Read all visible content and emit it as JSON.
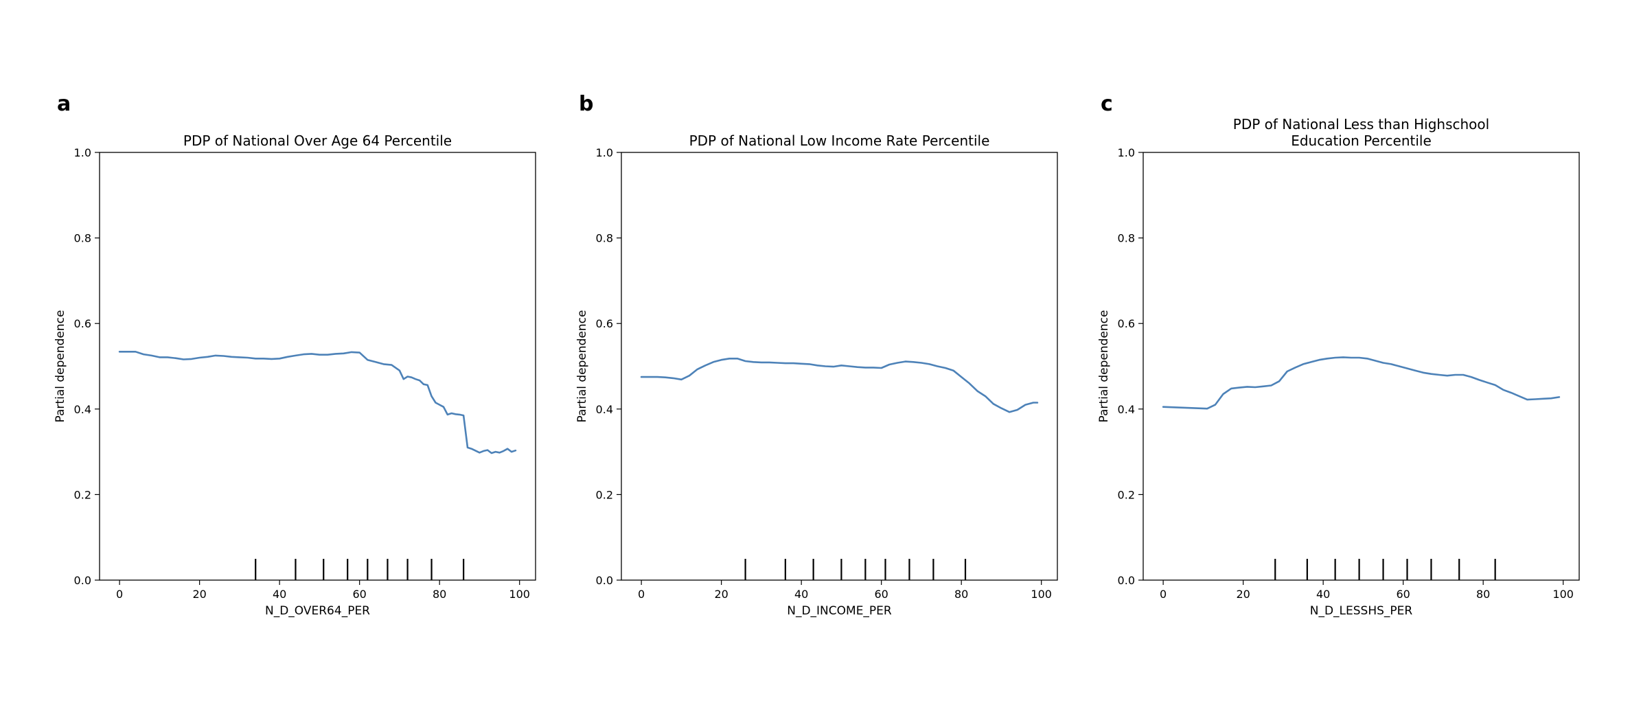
{
  "chart_data": [
    {
      "type": "line",
      "panel_label": "a",
      "title_lines": [
        "PDP of National Over Age 64 Percentile"
      ],
      "xlabel": "N_D_OVER64_PER",
      "ylabel": "Partial dependence",
      "xlim": [
        -5,
        104
      ],
      "ylim": [
        0,
        1.0
      ],
      "xticks": [
        "0",
        "20",
        "40",
        "60",
        "80",
        "100"
      ],
      "xtick_values": [
        0,
        20,
        40,
        60,
        80,
        100
      ],
      "yticks": [
        "0.0",
        "0.2",
        "0.4",
        "0.6",
        "0.8",
        "1.0"
      ],
      "ytick_values": [
        0,
        0.2,
        0.4,
        0.6,
        0.8,
        1.0
      ],
      "grid": false,
      "line_color": "#4d82b8",
      "rug_deciles": [
        34,
        44,
        51,
        57,
        62,
        67,
        72,
        78,
        86
      ],
      "series": [
        {
          "x": [
            0,
            4,
            6,
            8,
            10,
            12,
            14,
            16,
            18,
            20,
            22,
            24,
            26,
            28,
            30,
            32,
            34,
            36,
            38,
            40,
            42,
            44,
            46,
            48,
            50,
            52,
            54,
            56,
            58,
            60,
            62,
            64,
            66,
            68,
            70,
            71,
            72,
            73,
            74,
            75,
            76,
            77,
            78,
            79,
            80,
            81,
            82,
            83,
            84,
            85,
            86,
            87,
            88,
            90,
            91,
            92,
            93,
            94,
            95,
            96,
            97,
            98,
            99
          ],
          "y": [
            0.534,
            0.534,
            0.528,
            0.525,
            0.521,
            0.521,
            0.519,
            0.516,
            0.517,
            0.52,
            0.522,
            0.525,
            0.524,
            0.522,
            0.521,
            0.52,
            0.518,
            0.518,
            0.517,
            0.518,
            0.522,
            0.525,
            0.528,
            0.529,
            0.527,
            0.527,
            0.529,
            0.53,
            0.533,
            0.532,
            0.515,
            0.51,
            0.505,
            0.503,
            0.49,
            0.47,
            0.476,
            0.474,
            0.47,
            0.467,
            0.458,
            0.456,
            0.43,
            0.415,
            0.41,
            0.405,
            0.387,
            0.39,
            0.388,
            0.387,
            0.385,
            0.31,
            0.307,
            0.298,
            0.302,
            0.304,
            0.297,
            0.3,
            0.298,
            0.302,
            0.307,
            0.3,
            0.303
          ]
        }
      ]
    },
    {
      "type": "line",
      "panel_label": "b",
      "title_lines": [
        "PDP of National Low Income Rate Percentile"
      ],
      "xlabel": "N_D_INCOME_PER",
      "ylabel": "Partial dependence",
      "xlim": [
        -5,
        104
      ],
      "ylim": [
        0,
        1.0
      ],
      "xticks": [
        "0",
        "20",
        "40",
        "60",
        "80",
        "100"
      ],
      "xtick_values": [
        0,
        20,
        40,
        60,
        80,
        100
      ],
      "yticks": [
        "0.0",
        "0.2",
        "0.4",
        "0.6",
        "0.8",
        "1.0"
      ],
      "ytick_values": [
        0,
        0.2,
        0.4,
        0.6,
        0.8,
        1.0
      ],
      "grid": false,
      "line_color": "#4d82b8",
      "rug_deciles": [
        26,
        36,
        43,
        50,
        56,
        61,
        67,
        73,
        81
      ],
      "series": [
        {
          "x": [
            0,
            4,
            6,
            8,
            10,
            12,
            14,
            16,
            18,
            20,
            22,
            24,
            26,
            28,
            30,
            32,
            34,
            36,
            38,
            40,
            42,
            44,
            46,
            48,
            50,
            52,
            54,
            56,
            58,
            60,
            62,
            64,
            66,
            68,
            70,
            72,
            74,
            76,
            78,
            80,
            82,
            84,
            86,
            88,
            90,
            92,
            94,
            96,
            98,
            99
          ],
          "y": [
            0.475,
            0.475,
            0.474,
            0.472,
            0.469,
            0.478,
            0.493,
            0.502,
            0.51,
            0.515,
            0.518,
            0.518,
            0.512,
            0.51,
            0.509,
            0.509,
            0.508,
            0.507,
            0.507,
            0.506,
            0.505,
            0.502,
            0.5,
            0.499,
            0.502,
            0.5,
            0.498,
            0.497,
            0.497,
            0.496,
            0.504,
            0.508,
            0.511,
            0.51,
            0.508,
            0.505,
            0.5,
            0.496,
            0.49,
            0.475,
            0.46,
            0.442,
            0.43,
            0.412,
            0.402,
            0.393,
            0.398,
            0.41,
            0.415,
            0.415
          ]
        }
      ]
    },
    {
      "type": "line",
      "panel_label": "c",
      "title_lines": [
        "PDP of National Less than Highschool",
        "Education Percentile"
      ],
      "xlabel": "N_D_LESSHS_PER",
      "ylabel": "Partial dependence",
      "xlim": [
        -5,
        104
      ],
      "ylim": [
        0,
        1.0
      ],
      "xticks": [
        "0",
        "20",
        "40",
        "60",
        "80",
        "100"
      ],
      "xtick_values": [
        0,
        20,
        40,
        60,
        80,
        100
      ],
      "yticks": [
        "0.0",
        "0.2",
        "0.4",
        "0.6",
        "0.8",
        "1.0"
      ],
      "ytick_values": [
        0,
        0.2,
        0.4,
        0.6,
        0.8,
        1.0
      ],
      "grid": false,
      "line_color": "#4d82b8",
      "rug_deciles": [
        28,
        36,
        43,
        49,
        55,
        61,
        67,
        74,
        83
      ],
      "series": [
        {
          "x": [
            0,
            11,
            13,
            15,
            17,
            19,
            21,
            23,
            25,
            27,
            29,
            31,
            33,
            35,
            37,
            39,
            41,
            43,
            45,
            47,
            49,
            51,
            53,
            55,
            57,
            59,
            61,
            63,
            65,
            67,
            69,
            71,
            73,
            75,
            77,
            79,
            81,
            83,
            85,
            87,
            89,
            91,
            93,
            95,
            97,
            99
          ],
          "y": [
            0.405,
            0.401,
            0.41,
            0.435,
            0.448,
            0.45,
            0.452,
            0.451,
            0.453,
            0.455,
            0.465,
            0.488,
            0.497,
            0.505,
            0.51,
            0.515,
            0.518,
            0.52,
            0.521,
            0.52,
            0.52,
            0.518,
            0.513,
            0.508,
            0.505,
            0.5,
            0.495,
            0.49,
            0.485,
            0.482,
            0.48,
            0.478,
            0.48,
            0.48,
            0.475,
            0.468,
            0.462,
            0.456,
            0.445,
            0.438,
            0.43,
            0.422,
            0.423,
            0.424,
            0.425,
            0.428
          ]
        }
      ]
    }
  ]
}
